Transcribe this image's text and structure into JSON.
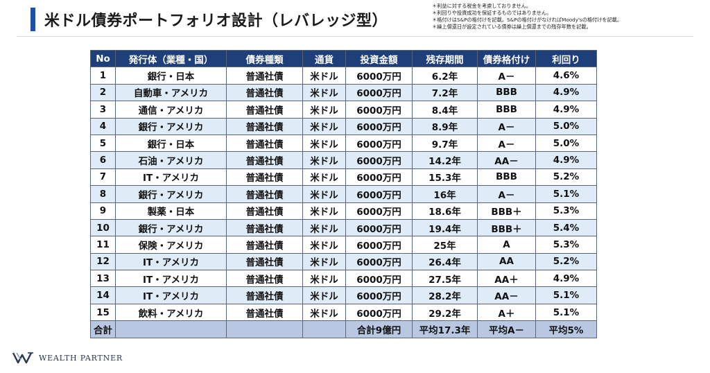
{
  "title": "米ドル債券ポートフォリオ設計（レバレッジ型）",
  "notes": [
    "＊利益に対する税金を考慮しておりません。",
    "＊利回りや投資成功を保証するものではありません。",
    "＊格付けはS&Pの格付けを記載。S&Pの格付けがなければMoody'sの格付けを記載。",
    "＊繰上償還日が設定されている債券は繰上償還までの残存年数を記載。"
  ],
  "table": {
    "headers": [
      "No",
      "発行体（業種・国）",
      "債券種類",
      "通貨",
      "投資金額",
      "残存期間",
      "債券格付け",
      "利回り"
    ],
    "rows": [
      [
        "1",
        "銀行・日本",
        "普通社債",
        "米ドル",
        "6000万円",
        "6.2年",
        "A－",
        "4.6%"
      ],
      [
        "2",
        "自動車・アメリカ",
        "普通社債",
        "米ドル",
        "6000万円",
        "7.2年",
        "BBB",
        "4.9%"
      ],
      [
        "3",
        "通信・アメリカ",
        "普通社債",
        "米ドル",
        "6000万円",
        "8.4年",
        "BBB",
        "4.9%"
      ],
      [
        "4",
        "銀行・アメリカ",
        "普通社債",
        "米ドル",
        "6000万円",
        "8.9年",
        "A－",
        "5.0%"
      ],
      [
        "5",
        "銀行・日本",
        "普通社債",
        "米ドル",
        "6000万円",
        "9.7年",
        "A－",
        "5.0%"
      ],
      [
        "6",
        "石油・アメリカ",
        "普通社債",
        "米ドル",
        "6000万円",
        "14.2年",
        "AA－",
        "4.9%"
      ],
      [
        "7",
        "IT・アメリカ",
        "普通社債",
        "米ドル",
        "6000万円",
        "15.3年",
        "BBB",
        "5.2%"
      ],
      [
        "8",
        "銀行・アメリカ",
        "普通社債",
        "米ドル",
        "6000万円",
        "16年",
        "A－",
        "5.1%"
      ],
      [
        "9",
        "製薬・日本",
        "普通社債",
        "米ドル",
        "6000万円",
        "18.6年",
        "BBB＋",
        "5.3%"
      ],
      [
        "10",
        "銀行・アメリカ",
        "普通社債",
        "米ドル",
        "6000万円",
        "19.4年",
        "BBB＋",
        "5.4%"
      ],
      [
        "11",
        "保険・アメリカ",
        "普通社債",
        "米ドル",
        "6000万円",
        "25年",
        "A",
        "5.3%"
      ],
      [
        "12",
        "IT・アメリカ",
        "普通社債",
        "米ドル",
        "6000万円",
        "26.4年",
        "AA",
        "5.2%"
      ],
      [
        "13",
        "IT・アメリカ",
        "普通社債",
        "米ドル",
        "6000万円",
        "27.5年",
        "AA＋",
        "4.9%"
      ],
      [
        "14",
        "IT・アメリカ",
        "普通社債",
        "米ドル",
        "6000万円",
        "28.2年",
        "AA－",
        "5.1%"
      ],
      [
        "15",
        "飲料・アメリカ",
        "普通社債",
        "米ドル",
        "6000万円",
        "29.2年",
        "A＋",
        "5.1%"
      ]
    ],
    "footer": [
      "合計",
      "",
      "",
      "",
      "合計9億円",
      "平均17.3年",
      "平均A－",
      "平均5%"
    ]
  },
  "logo": {
    "text": "WEALTH PARTNER",
    "mark_icon": "wealth-partner-w-mark-icon"
  },
  "colors": {
    "accent": "#1f4fa8",
    "header_bg": "#1f3f7a",
    "row_alt_bg": "#dfebf6",
    "footer_bg": "#b9c8e2"
  }
}
